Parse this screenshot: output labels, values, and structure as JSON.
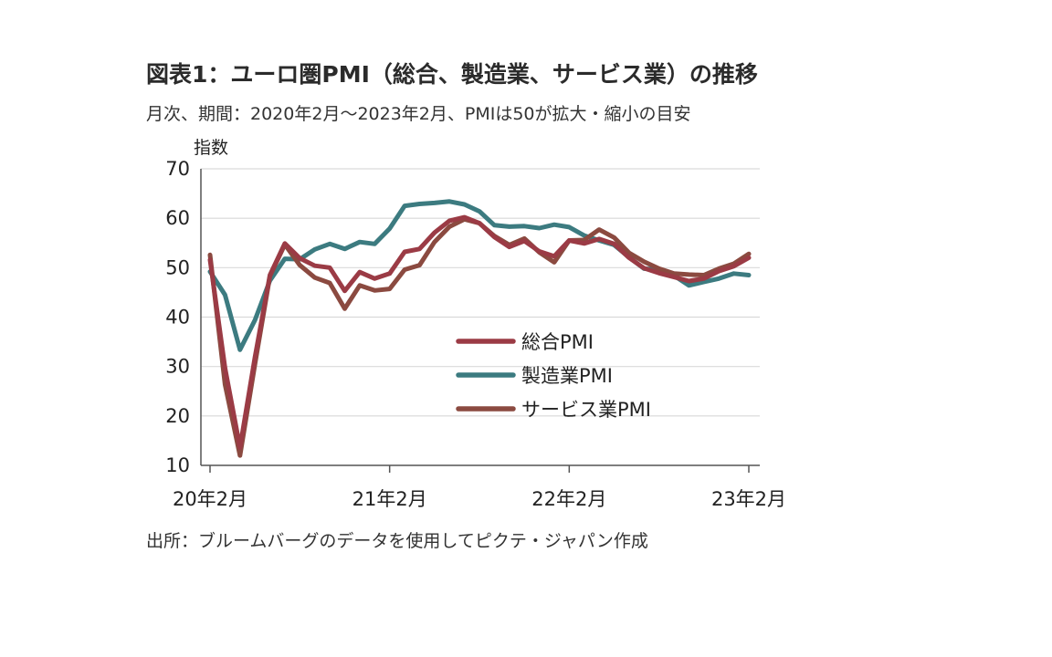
{
  "title": "図表1：ユーロ圏PMI（総合、製造業、サービス業）の推移",
  "subtitle": "月次、期間：2020年2月～2023年2月、PMIは50が拡大・縮小の目安",
  "source": "出所：ブルームバーグのデータを使用してピクテ・ジャパン作成",
  "chart_data": {
    "type": "line",
    "ylabel": "指数",
    "ylim": [
      10,
      70
    ],
    "yticks": [
      10,
      20,
      30,
      40,
      50,
      60,
      70
    ],
    "grid": true,
    "legend_position": "center-right",
    "x": [
      "2020-02",
      "2020-03",
      "2020-04",
      "2020-05",
      "2020-06",
      "2020-07",
      "2020-08",
      "2020-09",
      "2020-10",
      "2020-11",
      "2020-12",
      "2021-01",
      "2021-02",
      "2021-03",
      "2021-04",
      "2021-05",
      "2021-06",
      "2021-07",
      "2021-08",
      "2021-09",
      "2021-10",
      "2021-11",
      "2021-12",
      "2022-01",
      "2022-02",
      "2022-03",
      "2022-04",
      "2022-05",
      "2022-06",
      "2022-07",
      "2022-08",
      "2022-09",
      "2022-10",
      "2022-11",
      "2022-12",
      "2023-01",
      "2023-02"
    ],
    "xtick_labels": [
      {
        "index": 0,
        "label": "20年2月"
      },
      {
        "index": 12,
        "label": "21年2月"
      },
      {
        "index": 24,
        "label": "22年2月"
      },
      {
        "index": 36,
        "label": "23年2月"
      }
    ],
    "series": [
      {
        "name": "総合PMI",
        "color": "#9b3b45",
        "values": [
          51.6,
          29.7,
          13.6,
          31.9,
          48.5,
          54.9,
          51.9,
          50.4,
          50.0,
          45.3,
          49.1,
          47.8,
          48.8,
          53.2,
          53.8,
          57.1,
          59.5,
          60.2,
          59.0,
          56.2,
          54.2,
          55.4,
          53.3,
          52.3,
          55.5,
          54.9,
          55.8,
          54.8,
          52.0,
          49.9,
          48.9,
          48.1,
          47.3,
          47.8,
          49.3,
          50.3,
          52.0
        ]
      },
      {
        "name": "製造業PMI",
        "color": "#3c7b80",
        "values": [
          49.2,
          44.5,
          33.4,
          39.4,
          47.4,
          51.8,
          51.7,
          53.7,
          54.8,
          53.8,
          55.2,
          54.8,
          57.9,
          62.5,
          62.9,
          63.1,
          63.4,
          62.8,
          61.4,
          58.6,
          58.3,
          58.4,
          58.0,
          58.7,
          58.2,
          56.5,
          55.5,
          54.6,
          52.1,
          49.8,
          49.6,
          48.4,
          46.4,
          47.1,
          47.8,
          48.8,
          48.5
        ]
      },
      {
        "name": "サービス業PMI",
        "color": "#8b4a40",
        "values": [
          52.6,
          26.4,
          12.0,
          30.5,
          48.3,
          54.7,
          50.5,
          48.0,
          46.9,
          41.7,
          46.4,
          45.4,
          45.7,
          49.6,
          50.5,
          55.2,
          58.3,
          59.8,
          59.0,
          56.4,
          54.6,
          55.9,
          53.1,
          51.1,
          55.5,
          55.6,
          57.7,
          56.1,
          53.0,
          51.2,
          49.8,
          48.8,
          48.6,
          48.5,
          49.8,
          50.8,
          52.8
        ]
      }
    ]
  }
}
